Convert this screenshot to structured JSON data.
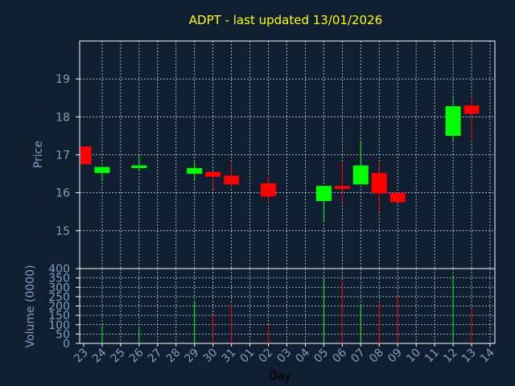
{
  "title": "ADPT - last updated 13/01/2026",
  "colors": {
    "background": "#0f1e30",
    "plot_border": "#ffffff",
    "grid": "#ffffff",
    "up": "#00ff00",
    "down": "#ff0000",
    "wick": "#00ff00",
    "wick_down": "#ff0000",
    "title": "#ffff00",
    "ticks": "#7f9fc0",
    "xlabel": "#000000"
  },
  "chart_data": [
    {
      "type": "candlestick",
      "ylabel": "Price",
      "ylim": [
        14.0,
        20.0
      ],
      "yticks": [
        15,
        16,
        17,
        18,
        19
      ],
      "grid": true,
      "x": [
        "23",
        "24",
        "25",
        "26",
        "27",
        "28",
        "29",
        "30",
        "31",
        "01",
        "02",
        "03",
        "04",
        "05",
        "06",
        "07",
        "08",
        "09",
        "10",
        "11",
        "12",
        "13",
        "14"
      ],
      "candles": [
        {
          "day": "23",
          "open": 17.22,
          "close": 16.75,
          "high": 17.22,
          "low": 16.75
        },
        {
          "day": "24",
          "open": 16.52,
          "close": 16.68,
          "high": 16.68,
          "low": 16.3
        },
        {
          "day": "26",
          "open": 16.65,
          "close": 16.72,
          "high": 17.02,
          "low": 16.58
        },
        {
          "day": "29",
          "open": 16.5,
          "close": 16.65,
          "high": 16.8,
          "low": 16.35
        },
        {
          "day": "30",
          "open": 16.55,
          "close": 16.42,
          "high": 16.55,
          "low": 16.1
        },
        {
          "day": "31",
          "open": 16.45,
          "close": 16.22,
          "high": 16.8,
          "low": 16.15
        },
        {
          "day": "02",
          "open": 16.25,
          "close": 15.9,
          "high": 16.45,
          "low": 15.73
        },
        {
          "day": "05",
          "open": 15.78,
          "close": 16.18,
          "high": 16.18,
          "low": 15.25
        },
        {
          "day": "06",
          "open": 16.18,
          "close": 16.1,
          "high": 16.8,
          "low": 15.75
        },
        {
          "day": "07",
          "open": 16.22,
          "close": 16.72,
          "high": 17.38,
          "low": 16.22
        },
        {
          "day": "08",
          "open": 16.52,
          "close": 15.98,
          "high": 16.8,
          "low": 15.5
        },
        {
          "day": "09",
          "open": 16.0,
          "close": 15.75,
          "high": 16.0,
          "low": 15.75
        },
        {
          "day": "12",
          "open": 17.5,
          "close": 18.28,
          "high": 18.5,
          "low": 17.35
        },
        {
          "day": "13",
          "open": 18.3,
          "close": 18.08,
          "high": 18.48,
          "low": 17.4
        }
      ]
    },
    {
      "type": "bar",
      "ylabel": "Volume (0000)",
      "xlabel": "Day",
      "ylim": [
        0,
        400
      ],
      "yticks": [
        0,
        50,
        100,
        150,
        200,
        250,
        300,
        350,
        400
      ],
      "grid": true,
      "x": [
        "23",
        "24",
        "25",
        "26",
        "27",
        "28",
        "29",
        "30",
        "31",
        "01",
        "02",
        "03",
        "04",
        "05",
        "06",
        "07",
        "08",
        "09",
        "10",
        "11",
        "12",
        "13",
        "14"
      ],
      "bars": [
        {
          "day": "24",
          "value": 95,
          "direction": "up"
        },
        {
          "day": "26",
          "value": 90,
          "direction": "up"
        },
        {
          "day": "29",
          "value": 228,
          "direction": "up"
        },
        {
          "day": "30",
          "value": 150,
          "direction": "down"
        },
        {
          "day": "31",
          "value": 210,
          "direction": "down"
        },
        {
          "day": "02",
          "value": 100,
          "direction": "down"
        },
        {
          "day": "05",
          "value": 350,
          "direction": "up"
        },
        {
          "day": "06",
          "value": 335,
          "direction": "down"
        },
        {
          "day": "07",
          "value": 210,
          "direction": "up"
        },
        {
          "day": "08",
          "value": 215,
          "direction": "down"
        },
        {
          "day": "09",
          "value": 255,
          "direction": "down"
        },
        {
          "day": "12",
          "value": 365,
          "direction": "up"
        },
        {
          "day": "13",
          "value": 190,
          "direction": "down"
        }
      ]
    }
  ]
}
